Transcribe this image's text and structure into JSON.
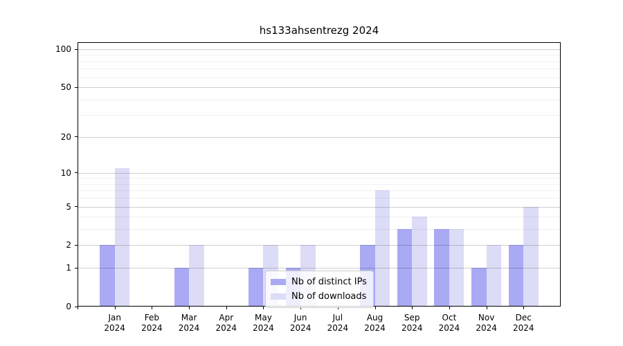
{
  "chart_data": {
    "type": "bar",
    "title": "hs133ahsentrezg 2024",
    "categories": [
      "Jan",
      "Feb",
      "Mar",
      "Apr",
      "May",
      "Jun",
      "Jul",
      "Aug",
      "Sep",
      "Oct",
      "Nov",
      "Dec"
    ],
    "category_year": "2024",
    "series": [
      {
        "name": "Nb of distinct IPs",
        "color": "#a9a9f4",
        "values": [
          2,
          0,
          1,
          0,
          1,
          1,
          0,
          2,
          3,
          3,
          1,
          2
        ]
      },
      {
        "name": "Nb of downloads",
        "color": "#dcdcf7",
        "values": [
          11,
          0,
          2,
          0,
          2,
          2,
          0,
          7,
          4,
          3,
          2,
          5
        ]
      }
    ],
    "xlabel": "",
    "ylabel": "",
    "yscale": "log1p",
    "ylim": [
      0,
      100
    ],
    "y_major_ticks": [
      0,
      1,
      2,
      5,
      10,
      20,
      50,
      100
    ],
    "y_minor_ticks": [
      3,
      4,
      6,
      7,
      8,
      9,
      30,
      40,
      60,
      70,
      80,
      90
    ],
    "grid": true,
    "legend_position": "lower center",
    "bar_width_fraction": 0.4
  },
  "colors": {
    "distinct_ips": "#a9a9f4",
    "downloads": "#dcdcf7",
    "grid_major": "rgba(0,0,0,0.19)",
    "grid_minor": "rgba(0,0,0,0.06)",
    "spine": "#000000",
    "background": "#ffffff"
  }
}
